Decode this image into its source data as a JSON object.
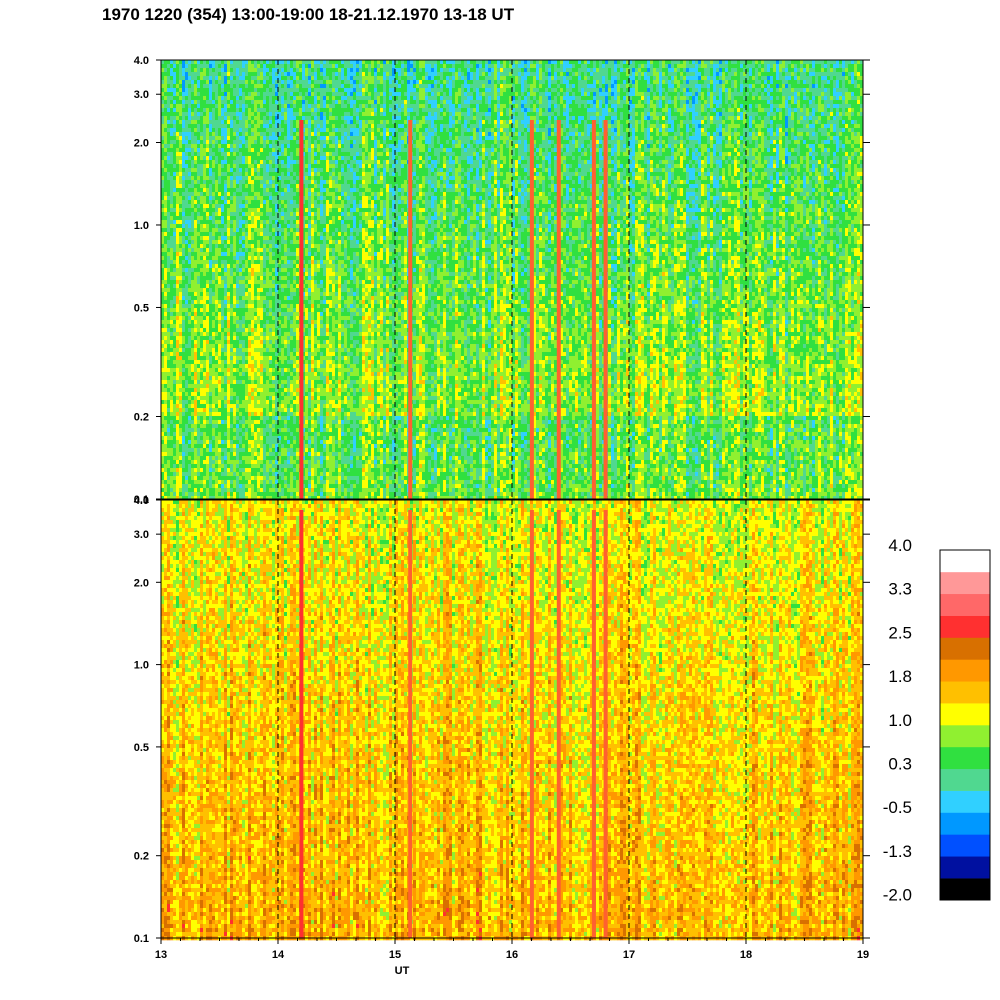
{
  "title": "1970 1220 (354) 13:00-19:00 18-21.12.1970  13-18 UT",
  "chart_data": [
    {
      "type": "heatmap",
      "panel": "upper",
      "x_range": [
        13,
        19
      ],
      "y_range": [
        0.1,
        4.0
      ],
      "y_scale": "log",
      "y_ticks": [
        "0.1",
        "0.2",
        "0.5",
        "1.0",
        "2.0",
        "3.0",
        "4.0"
      ],
      "y_tick_values": [
        0.1,
        0.2,
        0.5,
        1.0,
        2.0,
        3.0,
        4.0
      ],
      "vertical_markers": [
        14,
        15,
        16,
        17,
        18
      ],
      "bright_streaks_ut": [
        14.2,
        15.13,
        16.17,
        16.4,
        16.7,
        16.8
      ],
      "typical_level": 0.6
    },
    {
      "type": "heatmap",
      "panel": "lower",
      "x_range": [
        13,
        19
      ],
      "y_range": [
        0.1,
        4.0
      ],
      "y_scale": "log",
      "y_ticks": [
        "0.1",
        "0.2",
        "0.5",
        "1.0",
        "2.0",
        "3.0",
        "4.0"
      ],
      "y_tick_values": [
        0.1,
        0.2,
        0.5,
        1.0,
        2.0,
        3.0,
        4.0
      ],
      "vertical_markers": [
        14,
        15,
        16,
        17,
        18
      ],
      "bright_streaks_ut": [
        14.2,
        15.13,
        16.17,
        16.4,
        16.7,
        16.8
      ],
      "typical_level": 1.5
    }
  ],
  "x_axis": {
    "label": "UT",
    "ticks": [
      "13",
      "14",
      "15",
      "16",
      "17",
      "18",
      "19"
    ],
    "tick_values": [
      13,
      14,
      15,
      16,
      17,
      18,
      19
    ]
  },
  "colorbar": {
    "labels": [
      "4.0",
      "3.3",
      "2.5",
      "1.8",
      "1.0",
      "0.3",
      "-0.5",
      "-1.3",
      "-2.0"
    ],
    "colors": [
      "#000000",
      "#0010a0",
      "#0050ff",
      "#0098ff",
      "#30d0ff",
      "#50d890",
      "#30e040",
      "#90f030",
      "#ffff00",
      "#ffc000",
      "#ff9800",
      "#d87000",
      "#ff3030",
      "#ff6868",
      "#ff9898",
      "#ffffff"
    ]
  }
}
